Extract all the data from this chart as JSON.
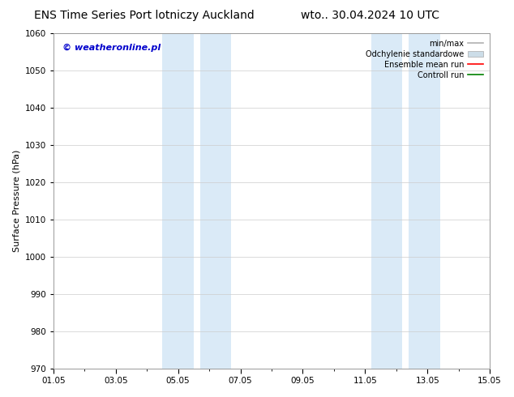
{
  "title_left": "ENS Time Series Port lotniczy Auckland",
  "title_right": "wto.. 30.04.2024 10 UTC",
  "ylabel": "Surface Pressure (hPa)",
  "ylim": [
    970,
    1060
  ],
  "yticks": [
    970,
    980,
    990,
    1000,
    1010,
    1020,
    1030,
    1040,
    1050,
    1060
  ],
  "xtick_labels": [
    "01.05",
    "03.05",
    "05.05",
    "07.05",
    "09.05",
    "11.05",
    "13.05",
    "15.05"
  ],
  "xtick_positions": [
    0,
    2,
    4,
    6,
    8,
    10,
    12,
    14
  ],
  "minor_xtick_positions": [
    0,
    1,
    2,
    3,
    4,
    5,
    6,
    7,
    8,
    9,
    10,
    11,
    12,
    13,
    14
  ],
  "xlim": [
    0,
    14
  ],
  "shaded_regions": [
    {
      "start": 3.5,
      "end": 4.5
    },
    {
      "start": 4.7,
      "end": 5.7
    },
    {
      "start": 10.2,
      "end": 11.2
    },
    {
      "start": 11.4,
      "end": 12.4
    }
  ],
  "shaded_color": "#daeaf7",
  "watermark_text": "© weatheronline.pl",
  "watermark_color": "#0000cc",
  "legend_entries": [
    {
      "label": "min/max",
      "color": "#b0b0b0",
      "lw": 1.2,
      "linestyle": "-"
    },
    {
      "label": "Odchylenie standardowe",
      "color": "#ccdde8",
      "lw": 8,
      "linestyle": "-"
    },
    {
      "label": "Ensemble mean run",
      "color": "red",
      "lw": 1.2,
      "linestyle": "-"
    },
    {
      "label": "Controll run",
      "color": "green",
      "lw": 1.2,
      "linestyle": "-"
    }
  ],
  "bg_color": "#ffffff",
  "grid_color": "#cccccc",
  "title_fontsize": 10,
  "ylabel_fontsize": 8,
  "tick_fontsize": 7.5,
  "legend_fontsize": 7,
  "watermark_fontsize": 8
}
